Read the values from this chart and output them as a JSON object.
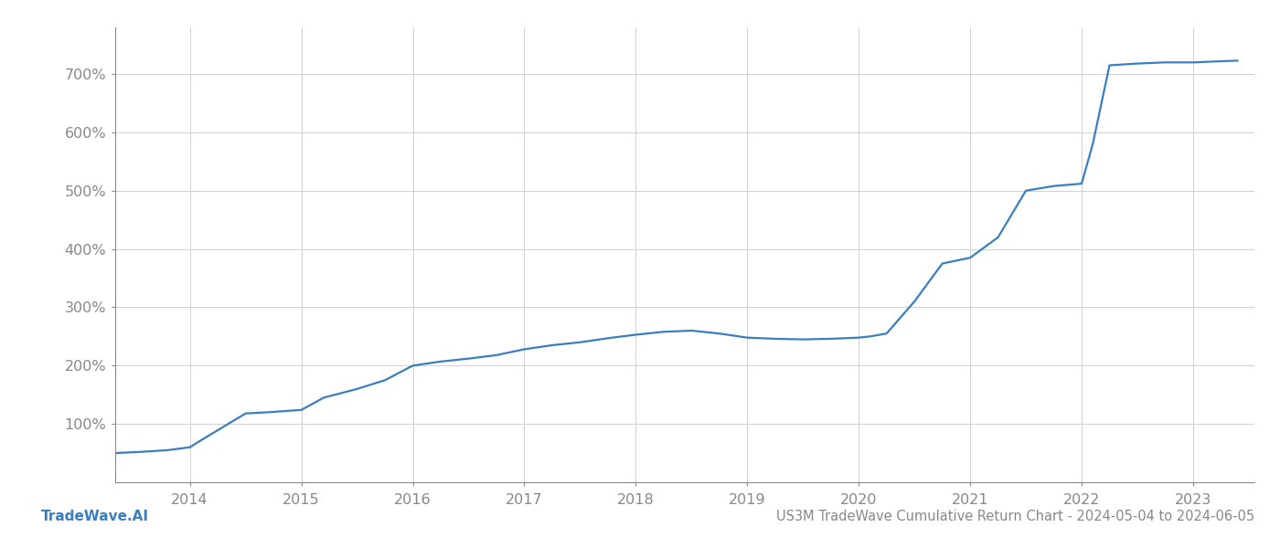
{
  "title": "US3M TradeWave Cumulative Return Chart - 2024-05-04 to 2024-06-05",
  "watermark": "TradeWave.AI",
  "line_color": "#3a7ebf",
  "background_color": "#ffffff",
  "grid_color": "#d0d0d0",
  "x_values": [
    2013.33,
    2013.55,
    2013.8,
    2014.0,
    2014.1,
    2014.3,
    2014.5,
    2014.7,
    2014.85,
    2015.0,
    2015.2,
    2015.5,
    2015.75,
    2016.0,
    2016.25,
    2016.5,
    2016.75,
    2017.0,
    2017.25,
    2017.5,
    2017.75,
    2018.0,
    2018.25,
    2018.5,
    2018.75,
    2019.0,
    2019.25,
    2019.5,
    2019.75,
    2020.0,
    2020.1,
    2020.25,
    2020.5,
    2020.75,
    2021.0,
    2021.25,
    2021.5,
    2021.75,
    2022.0,
    2022.1,
    2022.25,
    2022.5,
    2022.75,
    2023.0,
    2023.25,
    2023.4
  ],
  "y_values": [
    50,
    52,
    55,
    60,
    72,
    95,
    118,
    120,
    122,
    124,
    145,
    160,
    175,
    200,
    207,
    212,
    218,
    228,
    235,
    240,
    247,
    253,
    258,
    260,
    255,
    248,
    246,
    245,
    246,
    248,
    250,
    255,
    310,
    375,
    385,
    420,
    500,
    508,
    512,
    580,
    715,
    718,
    720,
    720,
    722,
    723
  ],
  "xlim": [
    2013.33,
    2023.55
  ],
  "ylim": [
    0,
    780
  ],
  "yticks": [
    100,
    200,
    300,
    400,
    500,
    600,
    700
  ],
  "ytick_labels": [
    "100%",
    "200%",
    "300%",
    "400%",
    "500%",
    "600%",
    "700%"
  ],
  "xticks": [
    2014,
    2015,
    2016,
    2017,
    2018,
    2019,
    2020,
    2021,
    2022,
    2023
  ],
  "xtick_labels": [
    "2014",
    "2015",
    "2016",
    "2017",
    "2018",
    "2019",
    "2020",
    "2021",
    "2022",
    "2023"
  ],
  "line_width": 1.6,
  "figsize": [
    14,
    6
  ],
  "dpi": 100,
  "spine_color": "#888888",
  "tick_color": "#888888",
  "title_fontsize": 10.5,
  "watermark_fontsize": 11,
  "tick_fontsize": 11.5
}
